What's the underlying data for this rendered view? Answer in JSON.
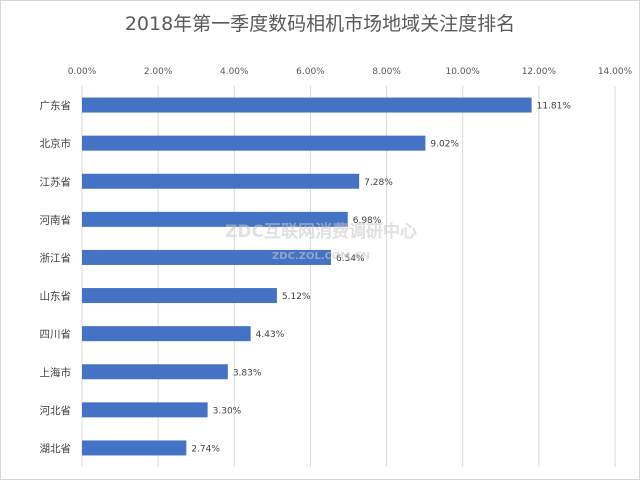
{
  "chart_data": {
    "type": "bar",
    "orientation": "horizontal",
    "title": "2018年第一季度数码相机市场地域关注度排名",
    "categories": [
      "广东省",
      "北京市",
      "江苏省",
      "河南省",
      "浙江省",
      "山东省",
      "四川省",
      "上海市",
      "河北省",
      "湖北省"
    ],
    "values": [
      11.81,
      9.02,
      7.28,
      6.98,
      6.54,
      5.12,
      4.43,
      3.83,
      3.3,
      2.74
    ],
    "value_labels": [
      "11.81%",
      "9.02%",
      "7.28%",
      "6.98%",
      "6.54%",
      "5.12%",
      "4.43%",
      "3.83%",
      "3.30%",
      "2.74%"
    ],
    "xlim": [
      0,
      14
    ],
    "x_ticks": [
      0,
      2,
      4,
      6,
      8,
      10,
      12,
      14
    ],
    "x_tick_labels": [
      "0.00%",
      "2.00%",
      "4.00%",
      "6.00%",
      "8.00%",
      "10.00%",
      "12.00%",
      "14.00%"
    ],
    "x_axis_position": "top",
    "grid": true,
    "legend": "none",
    "bar_color": "#4472c4",
    "grid_color": "#d9d9d9"
  },
  "watermark": {
    "main": "ZDC互联网消费调研中心",
    "sub": "ZDC.ZOL.COM.CN"
  }
}
